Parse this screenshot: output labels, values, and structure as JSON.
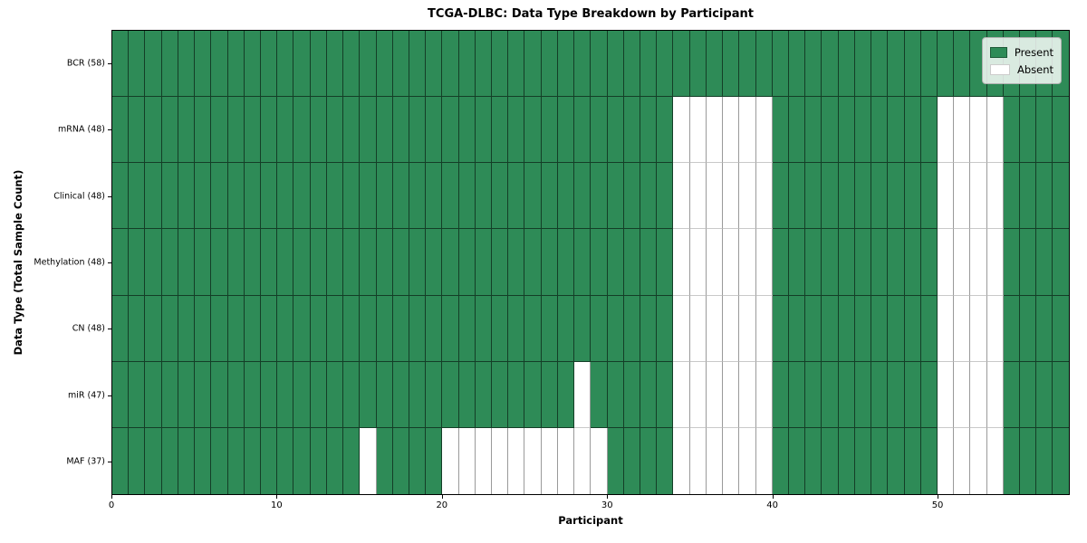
{
  "chart_data": {
    "type": "heatmap",
    "title": "TCGA-DLBC: Data Type Breakdown by Participant",
    "xlabel": "Participant",
    "ylabel": "Data Type (Total Sample Count)",
    "n_participants": 58,
    "xlim": [
      0,
      58
    ],
    "x_ticks": [
      0,
      10,
      20,
      30,
      40,
      50
    ],
    "grid": true,
    "legend_position": "upper right",
    "legend": [
      {
        "label": "Present",
        "value": 1,
        "color": "#2E8B57"
      },
      {
        "label": "Absent",
        "value": 0,
        "color": "#FFFFFF"
      }
    ],
    "colors": {
      "present": "#2E8B57",
      "absent": "#FFFFFF",
      "cell_edge_on_present": "rgba(0,0,0,0.55)",
      "cell_edge_on_absent": "#9a9a9a",
      "axis": "#000000"
    },
    "rows": [
      {
        "label": "BCR (58)",
        "data_type": "BCR",
        "present_count": 58,
        "absent_participants": []
      },
      {
        "label": "mRNA (48)",
        "data_type": "mRNA",
        "present_count": 48,
        "absent_participants": [
          34,
          35,
          36,
          37,
          38,
          39,
          50,
          51,
          52,
          53
        ]
      },
      {
        "label": "Clinical (48)",
        "data_type": "Clinical",
        "present_count": 48,
        "absent_participants": [
          34,
          35,
          36,
          37,
          38,
          39,
          50,
          51,
          52,
          53
        ]
      },
      {
        "label": "Methylation (48)",
        "data_type": "Methylation",
        "present_count": 48,
        "absent_participants": [
          34,
          35,
          36,
          37,
          38,
          39,
          50,
          51,
          52,
          53
        ]
      },
      {
        "label": "CN (48)",
        "data_type": "CN",
        "present_count": 48,
        "absent_participants": [
          34,
          35,
          36,
          37,
          38,
          39,
          50,
          51,
          52,
          53
        ]
      },
      {
        "label": "miR (47)",
        "data_type": "miR",
        "present_count": 47,
        "absent_participants": [
          28,
          34,
          35,
          36,
          37,
          38,
          39,
          50,
          51,
          52,
          53
        ]
      },
      {
        "label": "MAF (37)",
        "data_type": "MAF",
        "present_count": 37,
        "absent_participants": [
          15,
          20,
          21,
          22,
          23,
          24,
          25,
          26,
          27,
          28,
          29,
          34,
          35,
          36,
          37,
          38,
          39,
          50,
          51,
          52,
          53
        ]
      }
    ]
  }
}
